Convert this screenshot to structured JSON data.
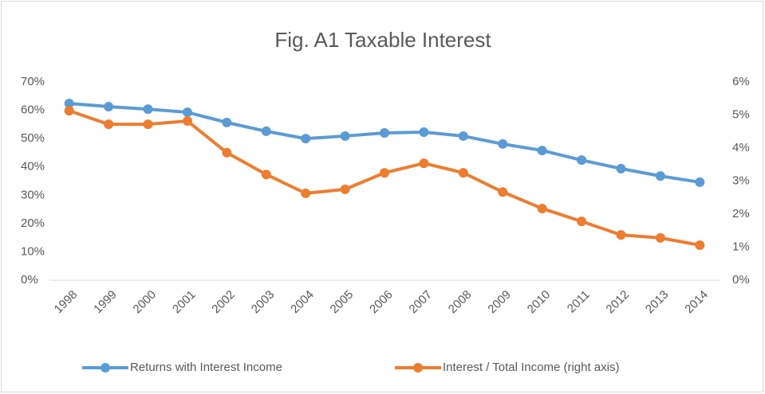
{
  "chart_data": {
    "type": "line",
    "title": "Fig. A1 Taxable Interest",
    "categories": [
      "1998",
      "1999",
      "2000",
      "2001",
      "2002",
      "2003",
      "2004",
      "2005",
      "2006",
      "2007",
      "2008",
      "2009",
      "2010",
      "2011",
      "2012",
      "2013",
      "2014"
    ],
    "series": [
      {
        "name": "Returns with Interest Income",
        "color": "#5b9bd5",
        "values": [
          62.4,
          61.3,
          60.4,
          59.3,
          55.7,
          52.6,
          50.0,
          50.9,
          52.0,
          52.3,
          50.9,
          48.1,
          45.8,
          42.4,
          39.4,
          36.8,
          34.6
        ]
      },
      {
        "name": "Interest / Total Income (right axis)",
        "color": "#ed7d31",
        "axis": "y2",
        "values": [
          5.13,
          4.72,
          4.72,
          4.82,
          3.86,
          3.2,
          2.63,
          2.75,
          3.25,
          3.54,
          3.25,
          2.67,
          2.17,
          1.78,
          1.37,
          1.28,
          1.06
        ]
      }
    ],
    "ylim": [
      0,
      70
    ],
    "yticks": [
      {
        "value": 0,
        "label": "0%"
      },
      {
        "value": 10,
        "label": "10%"
      },
      {
        "value": 20,
        "label": "20%"
      },
      {
        "value": 30,
        "label": "30%"
      },
      {
        "value": 40,
        "label": "40%"
      },
      {
        "value": 50,
        "label": "50%"
      },
      {
        "value": 60,
        "label": "60%"
      },
      {
        "value": 70,
        "label": "70%"
      }
    ],
    "y2lim": [
      0,
      6
    ],
    "y2ticks": [
      {
        "value": 0,
        "label": "0%"
      },
      {
        "value": 1,
        "label": "1%"
      },
      {
        "value": 2,
        "label": "2%"
      },
      {
        "value": 3,
        "label": "3%"
      },
      {
        "value": 4,
        "label": "4%"
      },
      {
        "value": 5,
        "label": "5%"
      },
      {
        "value": 6,
        "label": "6%"
      }
    ],
    "grid": false,
    "legend": "bottom"
  }
}
